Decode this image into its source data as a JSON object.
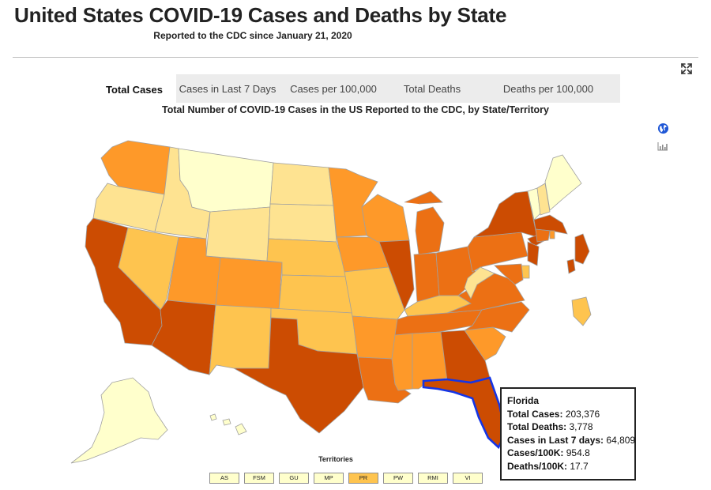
{
  "page": {
    "title": "United States COVID-19 Cases and Deaths by State",
    "subtitle": "Reported to the CDC since January 21, 2020"
  },
  "tabs": [
    {
      "label": "Total Cases",
      "active": true
    },
    {
      "label": "Cases in Last 7 Days",
      "active": false
    },
    {
      "label": "Cases per 100,000",
      "active": false
    },
    {
      "label": "Total Deaths",
      "active": false
    },
    {
      "label": "Deaths per 100,000",
      "active": false
    }
  ],
  "map": {
    "title": "Total Number of COVID-19 Cases in the US Reported to the CDC, by State/Territory",
    "colors": {
      "level1": "#ffffcc",
      "level2": "#fee391",
      "level3": "#fec44f",
      "level4": "#fe9929",
      "level5": "#ec7014",
      "level6": "#cc4c02",
      "border": "#a0a0a0",
      "highlight": "#1435e6"
    },
    "states": [
      {
        "abbr": "WA",
        "level": "level4"
      },
      {
        "abbr": "OR",
        "level": "level2"
      },
      {
        "abbr": "CA",
        "level": "level6"
      },
      {
        "abbr": "ID",
        "level": "level2"
      },
      {
        "abbr": "NV",
        "level": "level3"
      },
      {
        "abbr": "MT",
        "level": "level1"
      },
      {
        "abbr": "WY",
        "level": "level2"
      },
      {
        "abbr": "UT",
        "level": "level4"
      },
      {
        "abbr": "AZ",
        "level": "level6"
      },
      {
        "abbr": "CO",
        "level": "level4"
      },
      {
        "abbr": "NM",
        "level": "level3"
      },
      {
        "abbr": "ND",
        "level": "level2"
      },
      {
        "abbr": "SD",
        "level": "level2"
      },
      {
        "abbr": "NE",
        "level": "level3"
      },
      {
        "abbr": "KS",
        "level": "level3"
      },
      {
        "abbr": "OK",
        "level": "level3"
      },
      {
        "abbr": "TX",
        "level": "level6"
      },
      {
        "abbr": "MN",
        "level": "level4"
      },
      {
        "abbr": "IA",
        "level": "level4"
      },
      {
        "abbr": "MO",
        "level": "level3"
      },
      {
        "abbr": "AR",
        "level": "level4"
      },
      {
        "abbr": "LA",
        "level": "level5"
      },
      {
        "abbr": "WI",
        "level": "level4"
      },
      {
        "abbr": "IL",
        "level": "level6"
      },
      {
        "abbr": "MI",
        "level": "level5"
      },
      {
        "abbr": "IN",
        "level": "level5"
      },
      {
        "abbr": "OH",
        "level": "level5"
      },
      {
        "abbr": "KY",
        "level": "level3"
      },
      {
        "abbr": "TN",
        "level": "level5"
      },
      {
        "abbr": "MS",
        "level": "level4"
      },
      {
        "abbr": "AL",
        "level": "level4"
      },
      {
        "abbr": "GA",
        "level": "level6"
      },
      {
        "abbr": "FL",
        "level": "level6"
      },
      {
        "abbr": "SC",
        "level": "level4"
      },
      {
        "abbr": "NC",
        "level": "level5"
      },
      {
        "abbr": "VA",
        "level": "level5"
      },
      {
        "abbr": "WV",
        "level": "level2"
      },
      {
        "abbr": "PA",
        "level": "level5"
      },
      {
        "abbr": "NY",
        "level": "level6"
      },
      {
        "abbr": "VT",
        "level": "level1"
      },
      {
        "abbr": "NH",
        "level": "level2"
      },
      {
        "abbr": "ME",
        "level": "level1"
      },
      {
        "abbr": "MA",
        "level": "level6"
      },
      {
        "abbr": "CT",
        "level": "level5"
      },
      {
        "abbr": "RI",
        "level": "level4"
      },
      {
        "abbr": "NJ",
        "level": "level6"
      },
      {
        "abbr": "DE",
        "level": "level3"
      },
      {
        "abbr": "MD",
        "level": "level5"
      },
      {
        "abbr": "AK",
        "level": "level1"
      },
      {
        "abbr": "HI",
        "level": "level1"
      },
      {
        "abbr": "PRI",
        "level": "level3"
      },
      {
        "abbr": "NYC",
        "level": "level6"
      }
    ]
  },
  "territories": {
    "label": "Territories",
    "items": [
      {
        "code": "AS",
        "level": "level1"
      },
      {
        "code": "FSM",
        "level": "level1"
      },
      {
        "code": "GU",
        "level": "level1"
      },
      {
        "code": "MP",
        "level": "level1"
      },
      {
        "code": "PR",
        "level": "level3"
      },
      {
        "code": "PW",
        "level": "level1"
      },
      {
        "code": "RMI",
        "level": "level1"
      },
      {
        "code": "VI",
        "level": "level1"
      }
    ]
  },
  "tooltip": {
    "state": "Florida",
    "rows": [
      {
        "label": "Total Cases:",
        "value": "203,376"
      },
      {
        "label": "Total Deaths:",
        "value": "3,778"
      },
      {
        "label": "Cases in Last 7 days:",
        "value": "64,809"
      },
      {
        "label": "Cases/100K:",
        "value": "954.8"
      },
      {
        "label": "Deaths/100K:",
        "value": "17.7"
      }
    ]
  },
  "icons": {
    "expand": "expand-icon",
    "globe": "globe-icon",
    "chart": "bar-chart-icon"
  }
}
